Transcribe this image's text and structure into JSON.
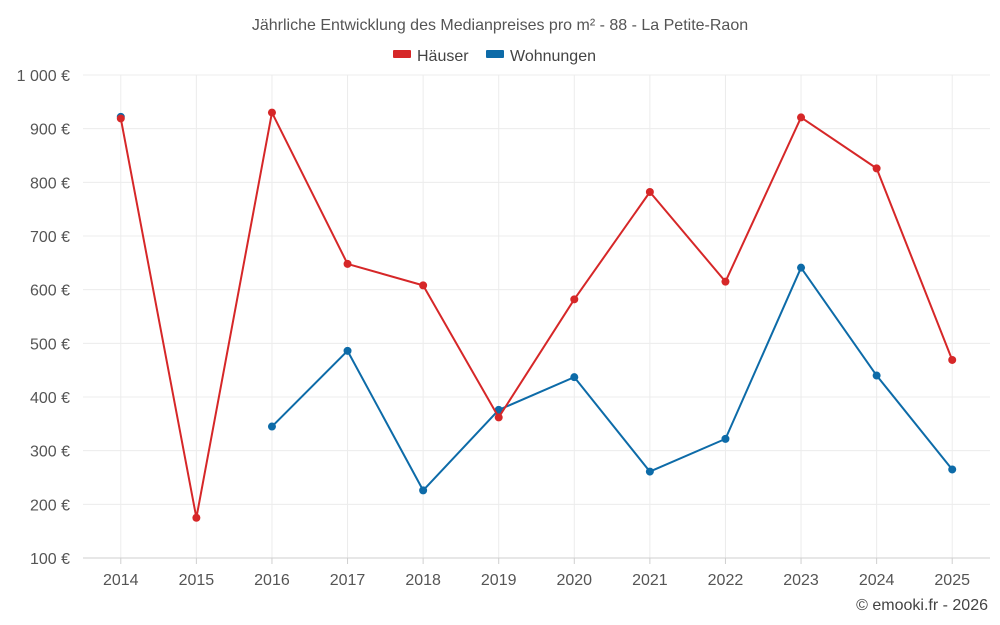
{
  "chart_data": {
    "type": "line",
    "title": "Jährliche Entwicklung des Medianpreises pro m² - 88 - La Petite-Raon",
    "categories": [
      "2014",
      "2015",
      "2016",
      "2017",
      "2018",
      "2019",
      "2020",
      "2021",
      "2022",
      "2023",
      "2024",
      "2025"
    ],
    "y_tick_labels": [
      "100 €",
      "200 €",
      "300 €",
      "400 €",
      "500 €",
      "600 €",
      "700 €",
      "800 €",
      "900 €",
      "1 000 €"
    ],
    "y_ticks": [
      100,
      200,
      300,
      400,
      500,
      600,
      700,
      800,
      900,
      1000
    ],
    "ylim": [
      100,
      1000
    ],
    "grid": true,
    "legend_position": "top-center",
    "series": [
      {
        "name": "Häuser",
        "color": "#d62728",
        "values": [
          919,
          175,
          930,
          648,
          608,
          362,
          582,
          782,
          615,
          921,
          826,
          469
        ]
      },
      {
        "name": "Wohnungen",
        "color": "#0d6ba8",
        "values": [
          922,
          null,
          345,
          486,
          226,
          376,
          437,
          261,
          322,
          641,
          440,
          265
        ]
      }
    ],
    "credit": "© emooki.fr - 2026"
  }
}
